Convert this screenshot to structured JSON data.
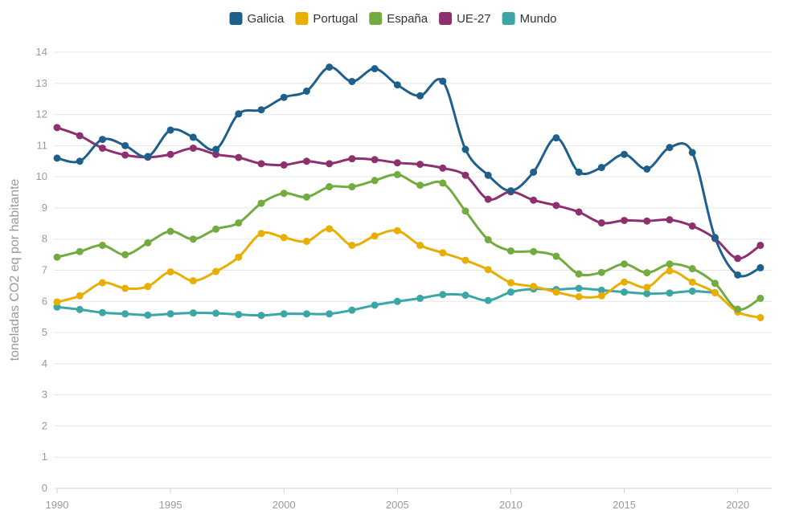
{
  "chart_data": {
    "type": "line",
    "title": "",
    "xlabel": "",
    "ylabel": "toneladas CO2 eq por habitante",
    "x": [
      1990,
      1991,
      1992,
      1993,
      1994,
      1995,
      1996,
      1997,
      1998,
      1999,
      2000,
      2001,
      2002,
      2003,
      2004,
      2005,
      2006,
      2007,
      2008,
      2009,
      2010,
      2011,
      2012,
      2013,
      2014,
      2015,
      2016,
      2017,
      2018,
      2019,
      2020,
      2021
    ],
    "xlim": [
      1990,
      2021.5
    ],
    "ylim": [
      0,
      14
    ],
    "x_ticks": [
      1990,
      1995,
      2000,
      2005,
      2010,
      2015,
      2020
    ],
    "y_ticks": [
      0,
      1,
      2,
      3,
      4,
      5,
      6,
      7,
      8,
      9,
      10,
      11,
      12,
      13,
      14
    ],
    "grid": true,
    "legend_position": "top-center",
    "series": [
      {
        "name": "Galicia",
        "color": "#1f5f8b",
        "values": [
          10.6,
          10.5,
          11.2,
          11.0,
          10.65,
          11.5,
          11.27,
          10.88,
          12.02,
          12.15,
          12.55,
          12.75,
          13.52,
          13.06,
          13.47,
          12.95,
          12.6,
          13.07,
          10.88,
          10.05,
          9.55,
          10.15,
          11.25,
          10.15,
          10.3,
          10.72,
          10.25,
          10.94,
          10.78,
          8.05,
          6.85,
          7.08
        ]
      },
      {
        "name": "Portugal",
        "color": "#e8ae00",
        "values": [
          5.98,
          6.18,
          6.6,
          6.42,
          6.48,
          6.95,
          6.66,
          6.96,
          7.42,
          8.18,
          8.05,
          7.93,
          8.33,
          7.8,
          8.1,
          8.27,
          7.8,
          7.56,
          7.32,
          7.02,
          6.6,
          6.48,
          6.3,
          6.15,
          6.18,
          6.62,
          6.45,
          6.98,
          6.62,
          6.28,
          5.66,
          5.48
        ]
      },
      {
        "name": "España",
        "color": "#72ab3f",
        "values": [
          7.42,
          7.6,
          7.8,
          7.5,
          7.88,
          8.25,
          8.0,
          8.32,
          8.52,
          9.15,
          9.47,
          9.35,
          9.68,
          9.68,
          9.88,
          10.07,
          9.73,
          9.8,
          8.9,
          7.98,
          7.62,
          7.6,
          7.45,
          6.88,
          6.93,
          7.2,
          6.92,
          7.2,
          7.05,
          6.58,
          5.75,
          6.1
        ]
      },
      {
        "name": "UE-27",
        "color": "#8e2f6f",
        "values": [
          11.58,
          11.32,
          10.92,
          10.7,
          10.63,
          10.72,
          10.92,
          10.72,
          10.62,
          10.42,
          10.38,
          10.5,
          10.42,
          10.58,
          10.55,
          10.45,
          10.4,
          10.28,
          10.05,
          9.28,
          9.52,
          9.25,
          9.08,
          8.87,
          8.52,
          8.6,
          8.58,
          8.62,
          8.42,
          8.02,
          7.38,
          7.8
        ]
      },
      {
        "name": "Mundo",
        "color": "#3aa6a6",
        "values": [
          5.82,
          5.74,
          5.64,
          5.6,
          5.56,
          5.6,
          5.63,
          5.62,
          5.58,
          5.55,
          5.6,
          5.6,
          5.6,
          5.72,
          5.88,
          6.0,
          6.1,
          6.22,
          6.2,
          6.03,
          6.3,
          6.4,
          6.38,
          6.42,
          6.36,
          6.3,
          6.25,
          6.27,
          6.33,
          6.28,
          null,
          null
        ]
      }
    ]
  }
}
